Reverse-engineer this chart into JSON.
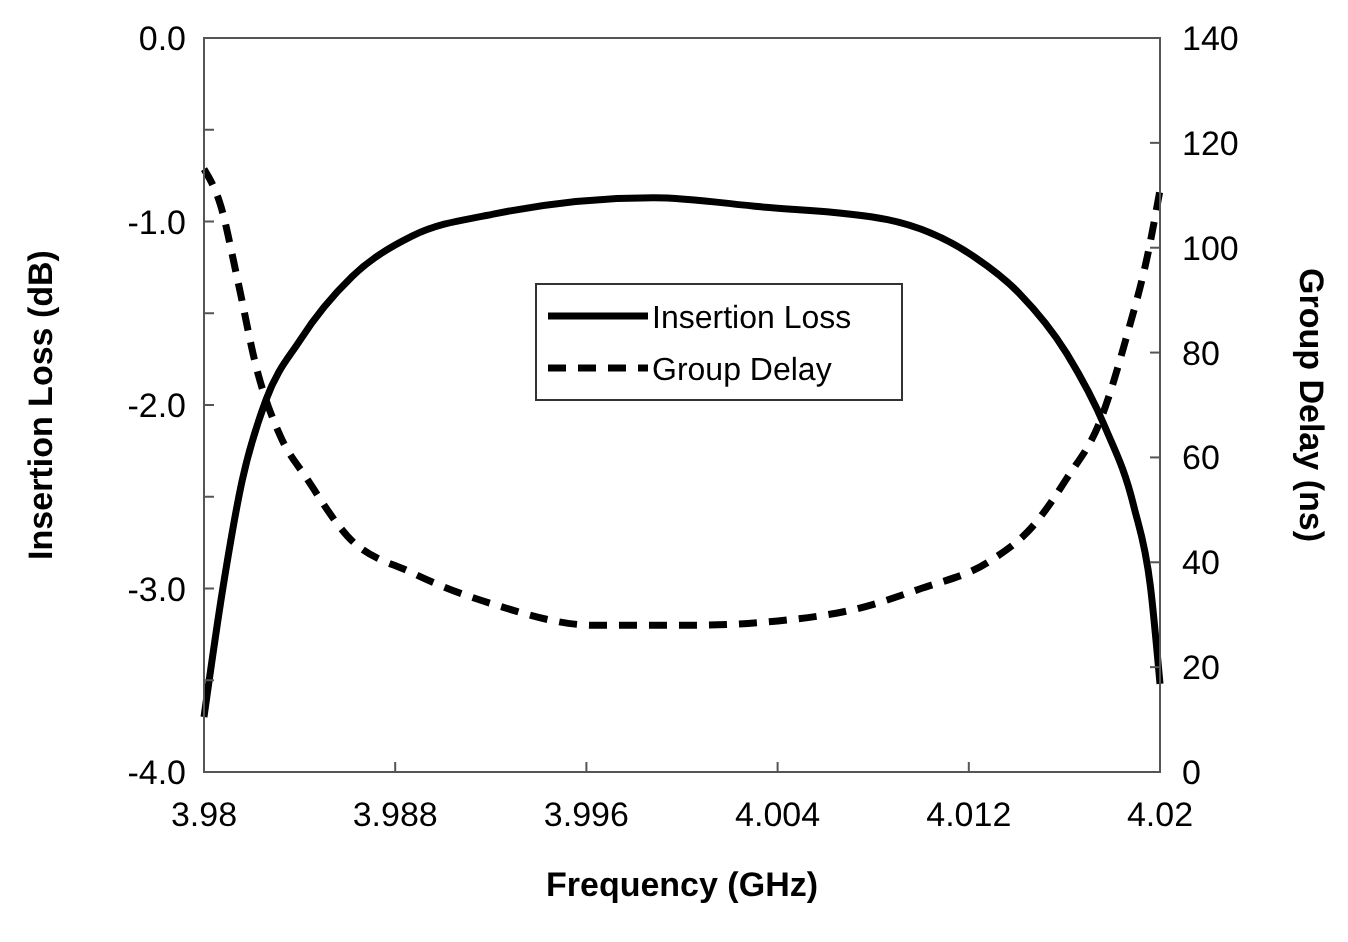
{
  "chart_data": {
    "type": "line",
    "xlabel": "Frequency (GHz)",
    "ylabel": "Insertion Loss (dB)",
    "y2label": "Group Delay (ns)",
    "xlim": [
      3.98,
      4.02
    ],
    "xticks": [
      {
        "value": 3.98,
        "label": "3.98"
      },
      {
        "value": 3.988,
        "label": "3.988"
      },
      {
        "value": 3.996,
        "label": "3.996"
      },
      {
        "value": 4.004,
        "label": "4.004"
      },
      {
        "value": 4.012,
        "label": "4.012"
      },
      {
        "value": 4.02,
        "label": "4.02"
      }
    ],
    "ylim": [
      -4,
      0
    ],
    "yticks": [
      {
        "value": -4,
        "label": "-4.0"
      },
      {
        "value": -3.5,
        "label": null
      },
      {
        "value": -3,
        "label": "-3.0"
      },
      {
        "value": -2.5,
        "label": null
      },
      {
        "value": -2,
        "label": "-2.0"
      },
      {
        "value": -1.5,
        "label": null
      },
      {
        "value": -1,
        "label": "-1.0"
      },
      {
        "value": -0.5,
        "label": null
      },
      {
        "value": 0,
        "label": "0.0"
      }
    ],
    "y2lim": [
      0,
      140
    ],
    "y2ticks": [
      0,
      20,
      40,
      60,
      80,
      100,
      120,
      140
    ],
    "grid": false,
    "legend": "center",
    "marker": "none",
    "series": [
      {
        "name": "Insertion Loss",
        "color": "#000000",
        "line_style": "solid",
        "x": [
          3.98,
          3.9808,
          3.9816,
          3.9826,
          3.984,
          3.9862,
          3.9887,
          3.9921,
          3.9988,
          4.0033,
          4.0086,
          4.0122,
          4.0141,
          4.0161,
          4.0177,
          4.0189,
          4.0196,
          4.02
        ],
        "values": [
          -3.7,
          -2.99,
          -2.41,
          -1.97,
          -1.65,
          -1.3,
          -1.08,
          -0.96,
          -0.87,
          -0.92,
          -0.99,
          -1.19,
          -1.39,
          -1.72,
          -2.12,
          -2.55,
          -2.99,
          -3.52
        ]
      },
      {
        "name": "Group Delay",
        "color": "#000000",
        "line_style": "dashed",
        "axis": "y2",
        "x": [
          3.98,
          3.9807,
          3.9814,
          3.9822,
          3.9832,
          3.9843,
          3.986,
          3.9887,
          3.9921,
          3.9963,
          4.0004,
          4.0044,
          4.0072,
          4.01,
          4.0128,
          4.0147,
          4.0161,
          4.0175,
          4.0186,
          4.0195,
          4.02
        ],
        "values": [
          115,
          108,
          94,
          77,
          64,
          56,
          45,
          38,
          32,
          28,
          28,
          29,
          31,
          35,
          40,
          47,
          56,
          67,
          83,
          99,
          111
        ]
      }
    ]
  }
}
